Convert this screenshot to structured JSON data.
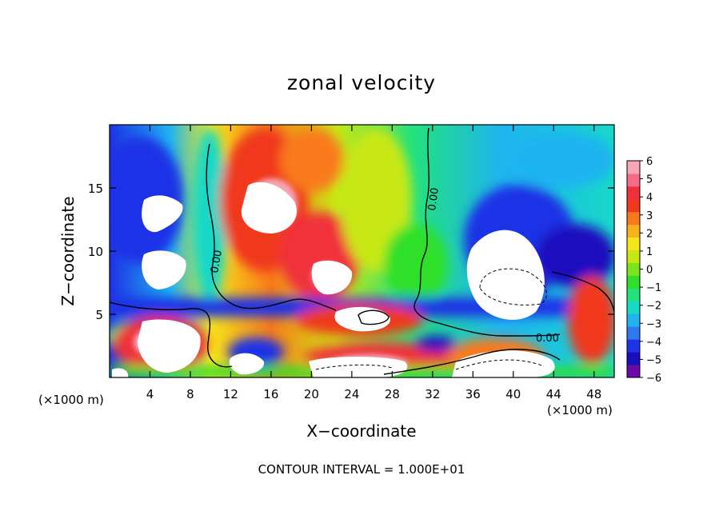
{
  "chart_data": {
    "type": "heatmap",
    "title": "zonal velocity",
    "xlabel": "X−coordinate",
    "ylabel": "Z−coordinate",
    "x_unit_label": "(×1000 m)",
    "y_unit_label": "(×1000 m)",
    "footer": "CONTOUR INTERVAL = 1.000E+01",
    "contour_label": "0.00",
    "xlim": [
      0,
      50
    ],
    "ylim": [
      0,
      20
    ],
    "x_ticks": [
      4,
      8,
      12,
      16,
      20,
      24,
      28,
      32,
      36,
      40,
      44,
      48
    ],
    "y_ticks": [
      5,
      10,
      15
    ],
    "colorbar": {
      "min": -6,
      "max": 6,
      "tick_labels": [
        "6",
        "5",
        "4",
        "3",
        "2",
        "1",
        "0",
        "−1",
        "−2",
        "−3",
        "−4",
        "−5",
        "−6"
      ],
      "colors": [
        "#6a0aa8",
        "#1a0fbf",
        "#1e32e6",
        "#2f78f0",
        "#1fb4f0",
        "#18d8c8",
        "#22e27c",
        "#2ee02a",
        "#7be41a",
        "#c8e814",
        "#f5e61a",
        "#f9b31a",
        "#f97a1a",
        "#f0391e",
        "#f0303a",
        "#f56c86",
        "#f7a6b6"
      ]
    },
    "regions": [
      {
        "name": "upper-left blue",
        "x": [
          0,
          6
        ],
        "z": [
          9,
          20
        ],
        "value": -4
      },
      {
        "name": "cyan band",
        "x": [
          6,
          10
        ],
        "z": [
          6,
          20
        ],
        "value": -2
      },
      {
        "name": "upper red jet",
        "x": [
          10,
          22
        ],
        "z": [
          6,
          20
        ],
        "value": 4.5
      },
      {
        "name": "upper white peak",
        "x": [
          11,
          16
        ],
        "z": [
          11,
          15
        ],
        "value": 6
      },
      {
        "name": "center yellow-green",
        "x": [
          20,
          32
        ],
        "z": [
          6,
          20
        ],
        "value": 1
      },
      {
        "name": "right cyan",
        "x": [
          32,
          50
        ],
        "z": [
          10,
          20
        ],
        "value": -2
      },
      {
        "name": "right blue vortex",
        "x": [
          34,
          44
        ],
        "z": [
          5,
          12
        ],
        "value": -5
      },
      {
        "name": "lower-left red",
        "x": [
          1,
          9
        ],
        "z": [
          0,
          4.5
        ],
        "value": 5
      },
      {
        "name": "lower red band",
        "x": [
          15,
          35
        ],
        "z": [
          0,
          4
        ],
        "value": 4.5
      },
      {
        "name": "right red",
        "x": [
          44,
          50
        ],
        "z": [
          0,
          8
        ],
        "value": 4
      },
      {
        "name": "bottom green",
        "x": [
          0,
          50
        ],
        "z": [
          0,
          1.5
        ],
        "value": 0
      }
    ]
  }
}
